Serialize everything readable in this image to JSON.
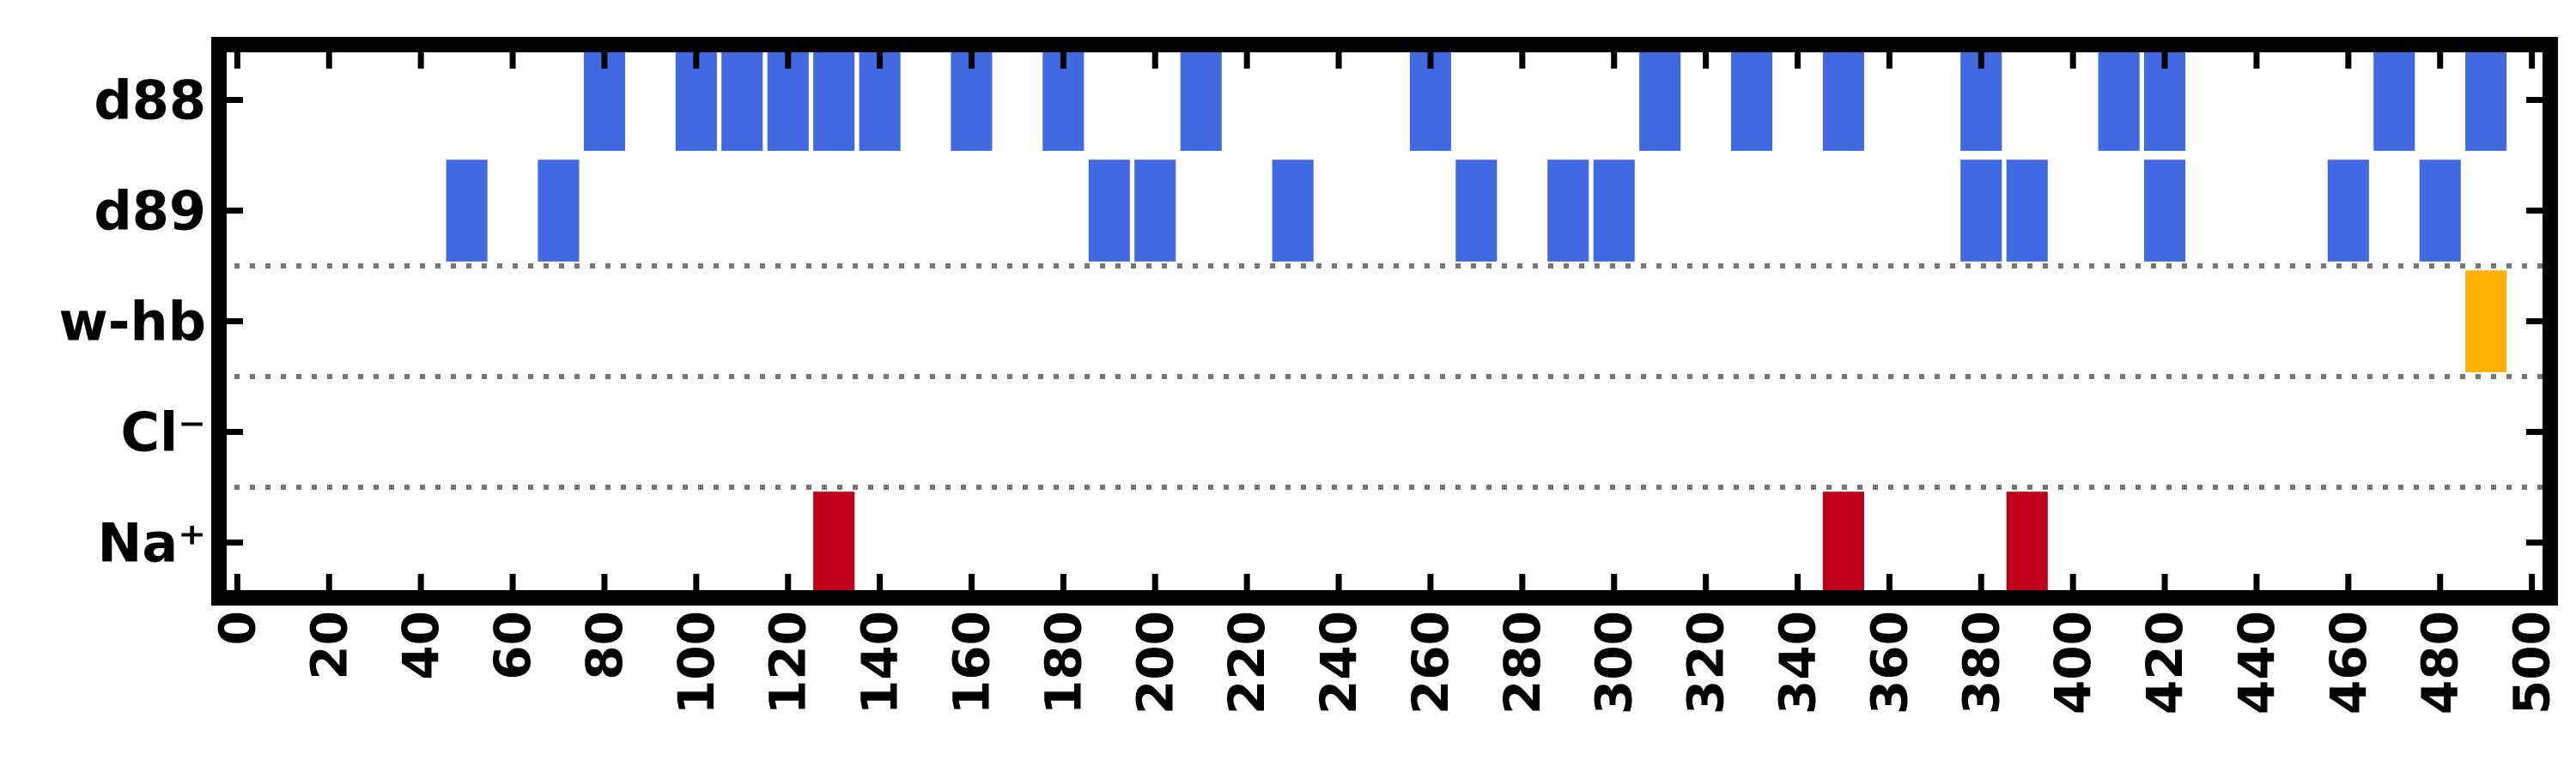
{
  "chart_data": {
    "type": "event-raster",
    "title": "",
    "xlabel": "",
    "ylabel": "",
    "xlim": [
      -4,
      504
    ],
    "xticks": [
      0,
      20,
      40,
      60,
      80,
      100,
      120,
      140,
      160,
      180,
      200,
      220,
      240,
      260,
      280,
      300,
      320,
      340,
      360,
      380,
      400,
      420,
      440,
      460,
      480,
      500
    ],
    "grid": false,
    "rows": [
      {
        "label": "d88",
        "color": "#4169e1",
        "events": [
          80,
          100,
          110,
          120,
          130,
          140,
          160,
          180,
          210,
          260,
          310,
          330,
          350,
          380,
          410,
          420,
          470,
          490
        ]
      },
      {
        "label": "d89",
        "color": "#4169e1",
        "events": [
          50,
          70,
          190,
          200,
          230,
          270,
          290,
          300,
          380,
          390,
          420,
          460,
          480
        ]
      },
      {
        "label": "w-hb",
        "color": "#ffb000",
        "events": [
          490
        ]
      },
      {
        "label": "Cl⁻",
        "color": "#c00018",
        "events": []
      },
      {
        "label": "Na⁺",
        "color": "#c00018",
        "events": [
          130,
          350,
          390
        ]
      }
    ],
    "dotted_separators_between": [
      [
        "d89",
        "w-hb"
      ],
      [
        "w-hb",
        "Cl⁻"
      ],
      [
        "Cl⁻",
        "Na⁺"
      ]
    ]
  }
}
